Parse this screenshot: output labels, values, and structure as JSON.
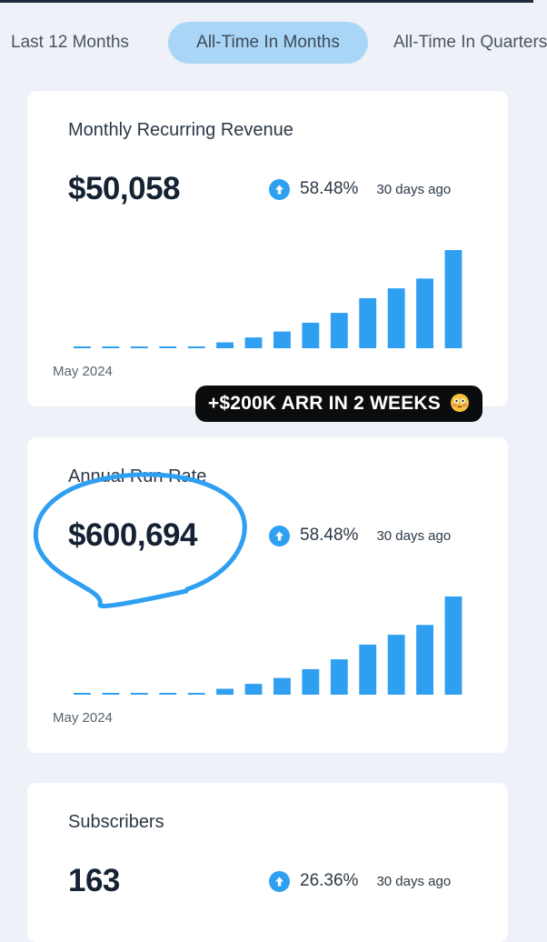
{
  "tabs": [
    {
      "label": "Last 12 Months",
      "active": false
    },
    {
      "label": "All-Time In Months",
      "active": true
    },
    {
      "label": "All-Time In Quarters",
      "active": false
    }
  ],
  "colors": {
    "accent": "#2f9ff2",
    "active_tab_bg": "#a9d6f7",
    "badge_bg": "#0b0c0e"
  },
  "cards": [
    {
      "title": "Monthly Recurring Revenue",
      "value": "$50,058",
      "change_pct": "58.48%",
      "change_period": "30 days ago",
      "chart_start_label": "May 2024",
      "chart_data": {
        "type": "bar",
        "start": "May 2024",
        "values": [
          0,
          0,
          0,
          0,
          0,
          0.06,
          0.11,
          0.17,
          0.26,
          0.36,
          0.51,
          0.61,
          0.71,
          1.0
        ]
      }
    },
    {
      "title": "Annual Run Rate",
      "value": "$600,694",
      "change_pct": "58.48%",
      "change_period": "30 days ago",
      "chart_start_label": "May 2024",
      "chart_data": {
        "type": "bar",
        "start": "May 2024",
        "values": [
          0,
          0,
          0,
          0,
          0,
          0.06,
          0.11,
          0.17,
          0.26,
          0.36,
          0.51,
          0.61,
          0.71,
          1.0
        ]
      }
    },
    {
      "title": "Subscribers",
      "value": "163",
      "change_pct": "26.36%",
      "change_period": "30 days ago"
    }
  ],
  "badge": {
    "text": "+$200K ARR IN 2 WEEKS",
    "emoji": "flushed-face-icon"
  }
}
